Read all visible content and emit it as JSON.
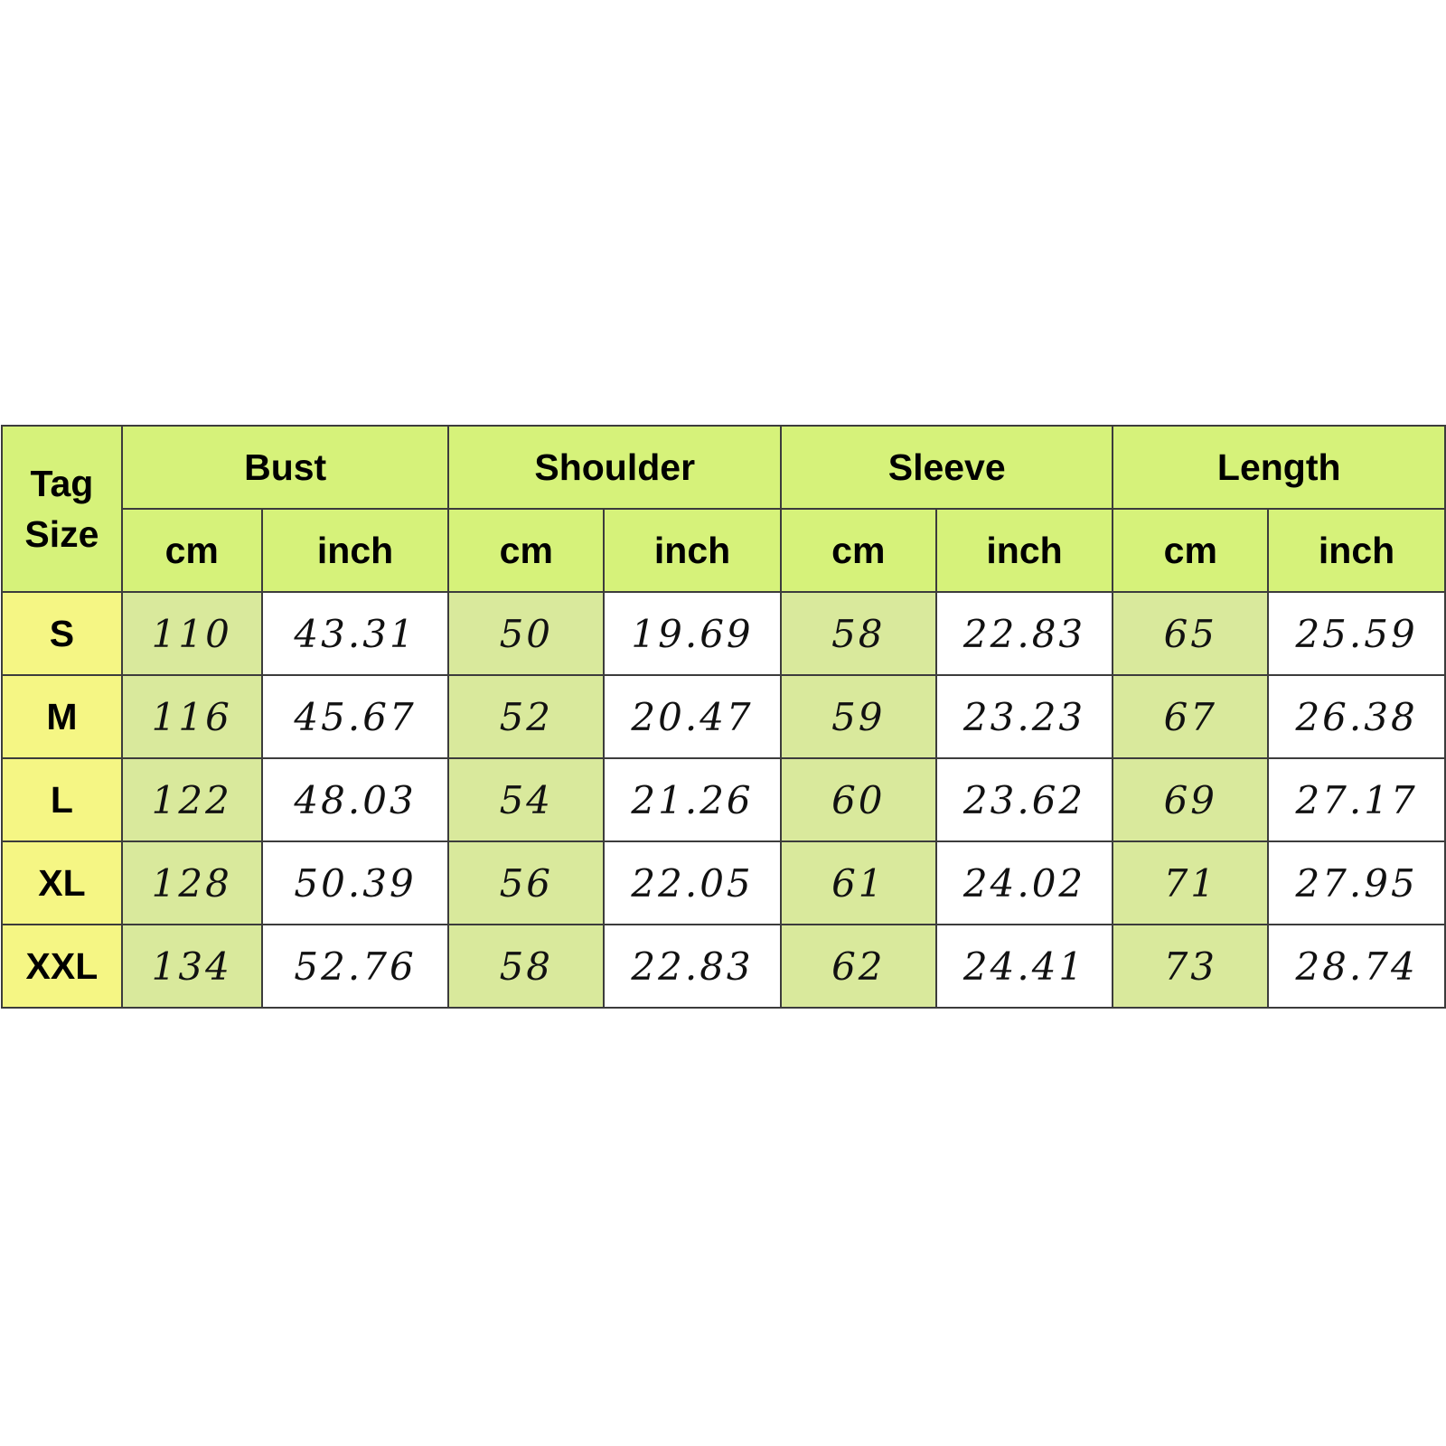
{
  "table": {
    "tag_size_header": [
      "Tag",
      "Size"
    ],
    "groups": [
      "Bust",
      "Shoulder",
      "Sleeve",
      "Length"
    ],
    "units": [
      "cm",
      "inch",
      "cm",
      "inch",
      "cm",
      "inch",
      "cm",
      "inch"
    ],
    "rows": [
      {
        "size": "S",
        "values": [
          "110",
          "43.31",
          "50",
          "19.69",
          "58",
          "22.83",
          "65",
          "25.59"
        ]
      },
      {
        "size": "M",
        "values": [
          "116",
          "45.67",
          "52",
          "20.47",
          "59",
          "23.23",
          "67",
          "26.38"
        ]
      },
      {
        "size": "L",
        "values": [
          "122",
          "48.03",
          "54",
          "21.26",
          "60",
          "23.62",
          "69",
          "27.17"
        ]
      },
      {
        "size": "XL",
        "values": [
          "128",
          "50.39",
          "56",
          "22.05",
          "61",
          "24.02",
          "71",
          "27.95"
        ]
      },
      {
        "size": "XXL",
        "values": [
          "134",
          "52.76",
          "58",
          "22.83",
          "62",
          "24.41",
          "73",
          "28.74"
        ]
      }
    ]
  },
  "colors": {
    "header_bg": "#d6f27a",
    "size_col_bg": "#f5f684",
    "cm_cell_bg": "#d9e99c",
    "inch_cell_bg": "#ffffff",
    "border": "#3c3c3c"
  }
}
